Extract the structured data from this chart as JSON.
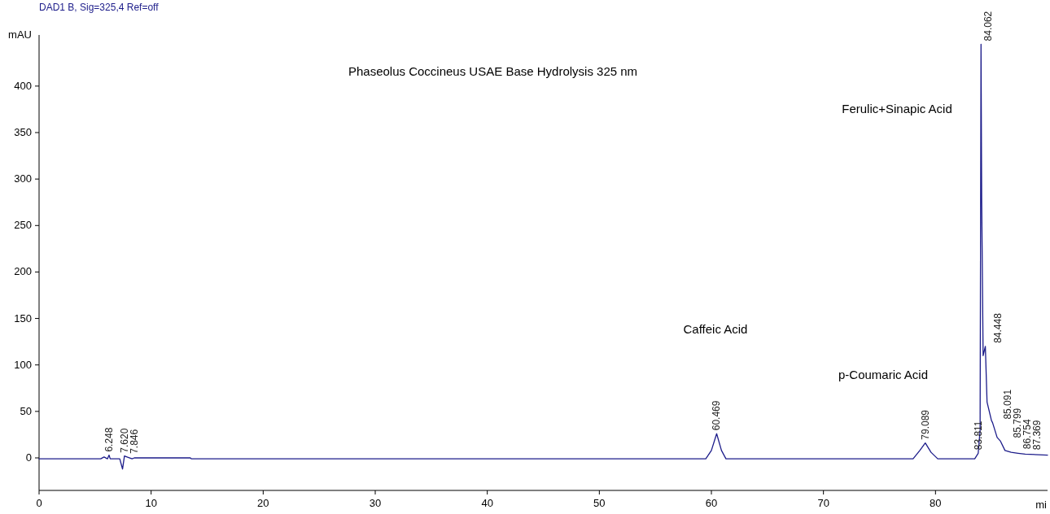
{
  "chart_data": {
    "type": "line",
    "title": "Phaseolus Coccineus USAE Base Hydrolysis 325 nm",
    "subtitle": "DAD1 B, Sig=325,4 Ref=off",
    "ylabel": "mAU",
    "xlabel": "mi",
    "xlim": [
      0,
      90
    ],
    "xticks": [
      0,
      10,
      20,
      30,
      40,
      50,
      60,
      70,
      80
    ],
    "ylim": [
      -35,
      455
    ],
    "yticks": [
      0,
      50,
      100,
      150,
      200,
      250,
      300,
      350,
      400
    ],
    "marker": "none",
    "line_style": "solid",
    "series": [
      {
        "color": "#1c1c8a",
        "x": [
          0,
          5.5,
          5.8,
          6.1,
          6.248,
          6.35,
          7.2,
          7.45,
          7.62,
          7.846,
          8.3,
          8.5,
          13.5,
          13.6,
          59.5,
          60.0,
          60.469,
          60.9,
          61.3,
          78.0,
          78.6,
          79.089,
          79.6,
          80.2,
          83.5,
          83.811,
          83.98,
          84.062,
          84.12,
          84.25,
          84.448,
          84.6,
          85.0,
          85.091,
          85.5,
          85.799,
          86.2,
          86.754,
          87.369,
          88.0,
          90.0
        ],
        "values": [
          -1,
          -1,
          1,
          -1,
          3,
          -1,
          -1,
          -12,
          2,
          1,
          -1,
          0,
          0,
          -1,
          -1,
          8,
          26,
          8,
          -1,
          -1,
          8,
          16,
          6,
          -1,
          -1,
          5,
          30,
          445,
          280,
          110,
          120,
          60,
          40,
          38,
          22,
          18,
          8,
          6,
          5,
          4,
          3
        ]
      }
    ],
    "annotations": [
      "Caffeic Acid",
      "p-Coumaric Acid",
      "Ferulic+Sinapic Acid",
      {
        "text": "6.248",
        "x": 6.248,
        "y": 3
      },
      {
        "text": "7.620",
        "x": 7.62,
        "y": 2
      },
      {
        "text": "7.846",
        "x": 7.846,
        "y": 1
      },
      {
        "text": "60.469",
        "x": 60.469,
        "y": 26
      },
      {
        "text": "79.089",
        "x": 79.089,
        "y": 16
      },
      {
        "text": "83.811",
        "x": 83.811,
        "y": 5
      },
      {
        "text": "84.062",
        "x": 84.062,
        "y": 445
      },
      {
        "text": "84.448",
        "x": 84.448,
        "y": 120
      },
      {
        "text": "85.091",
        "x": 85.091,
        "y": 38
      },
      {
        "text": "85.799",
        "x": 85.799,
        "y": 18
      },
      {
        "text": "86.754",
        "x": 86.754,
        "y": 6
      },
      {
        "text": "87.369",
        "x": 87.369,
        "y": 5
      }
    ]
  }
}
